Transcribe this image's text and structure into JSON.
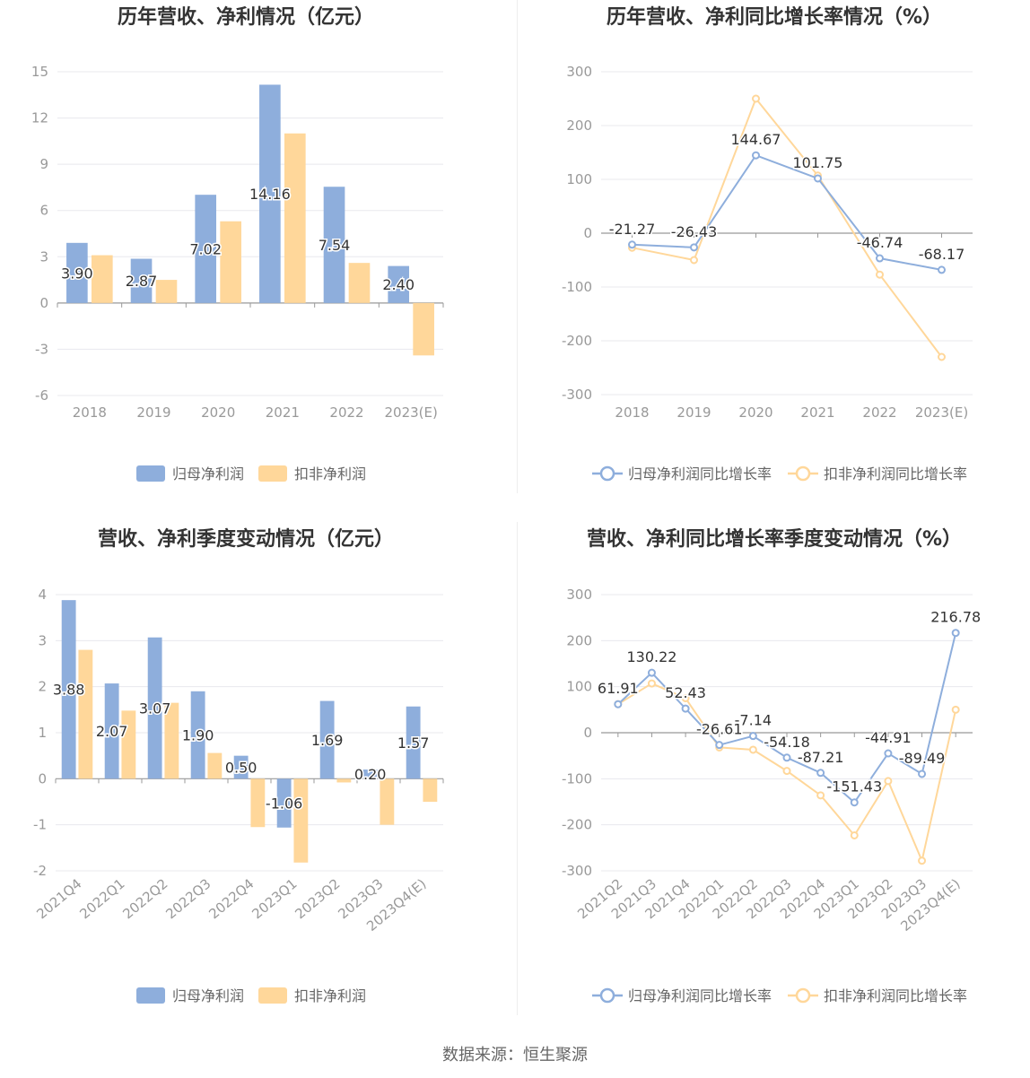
{
  "footer": {
    "source": "数据来源：恒生聚源"
  },
  "colors": {
    "blue": "#8eaedc",
    "orange": "#ffd79a",
    "axis": "#999999",
    "grid": "#e8e8ee",
    "text": "#999999",
    "label": "#333333"
  },
  "chart_data": [
    {
      "type": "bar",
      "title": "历年营收、净利情况（亿元）",
      "categories": [
        "2018",
        "2019",
        "2020",
        "2021",
        "2022",
        "2023(E)"
      ],
      "yticks": [
        "15",
        "12",
        "9",
        "6",
        "3",
        "0",
        "-3",
        "-6"
      ],
      "ylim": [
        -6,
        15
      ],
      "series": [
        {
          "name": "归母净利润",
          "values": [
            3.9,
            2.87,
            7.02,
            14.16,
            7.54,
            2.4
          ],
          "labels": [
            "3.90",
            "2.87",
            "7.02",
            "14.16",
            "7.54",
            "2.40"
          ]
        },
        {
          "name": "扣非净利润",
          "values": [
            3.1,
            1.5,
            5.3,
            11.0,
            2.6,
            -3.4
          ]
        }
      ],
      "legend": "bottom-center",
      "grid": true
    },
    {
      "type": "line",
      "title": "历年营收、净利同比增长率情况（%）",
      "categories": [
        "2018",
        "2019",
        "2020",
        "2021",
        "2022",
        "2023(E)"
      ],
      "yticks": [
        "300",
        "200",
        "100",
        "0",
        "-100",
        "-200",
        "-300"
      ],
      "ylim": [
        -300,
        300
      ],
      "series": [
        {
          "name": "归母净利润同比增长率",
          "values": [
            -21.27,
            -26.43,
            144.67,
            101.75,
            -46.74,
            -68.17
          ],
          "labels": [
            "-21.27",
            "-26.43",
            "144.67",
            "101.75",
            "-46.74",
            "-68.17"
          ]
        },
        {
          "name": "扣非净利润同比增长率",
          "values": [
            -27,
            -50,
            250,
            107,
            -77,
            -230
          ]
        }
      ],
      "legend": "bottom-center",
      "grid": true
    },
    {
      "type": "bar",
      "title": "营收、净利季度变动情况（亿元）",
      "categories": [
        "2021Q4",
        "2022Q1",
        "2022Q2",
        "2022Q3",
        "2022Q4",
        "2023Q1",
        "2023Q2",
        "2023Q3",
        "2023Q4(E)"
      ],
      "yticks": [
        "4",
        "3",
        "2",
        "1",
        "0",
        "-1",
        "-2"
      ],
      "ylim": [
        -2,
        4
      ],
      "series": [
        {
          "name": "归母净利润",
          "values": [
            3.88,
            2.07,
            3.07,
            1.9,
            0.5,
            -1.06,
            1.69,
            0.2,
            1.57
          ],
          "labels": [
            "3.88",
            "2.07",
            "3.07",
            "1.90",
            "0.50",
            "-1.06",
            "1.69",
            "0.20",
            "1.57"
          ]
        },
        {
          "name": "扣非净利润",
          "values": [
            2.8,
            1.48,
            1.65,
            0.56,
            -1.05,
            -1.82,
            -0.08,
            -1.0,
            -0.5
          ]
        }
      ],
      "legend": "bottom-center",
      "grid": true
    },
    {
      "type": "line",
      "title": "营收、净利同比增长率季度变动情况（%）",
      "categories": [
        "2021Q2",
        "2021Q3",
        "2021Q4",
        "2022Q1",
        "2022Q2",
        "2022Q3",
        "2022Q4",
        "2023Q1",
        "2023Q2",
        "2023Q3",
        "2023Q4(E)"
      ],
      "yticks": [
        "300",
        "200",
        "100",
        "0",
        "-100",
        "-200",
        "-300"
      ],
      "ylim": [
        -300,
        300
      ],
      "series": [
        {
          "name": "归母净利润同比增长率",
          "values": [
            61.91,
            130.22,
            52.43,
            -26.61,
            -7.14,
            -54.18,
            -87.21,
            -151.43,
            -44.91,
            -89.49,
            216.78
          ],
          "labels": [
            "61.91",
            "130.22",
            "52.43",
            "-26.61",
            "-7.14",
            "-54.18",
            "-87.21",
            "-151.43",
            "-44.91",
            "-89.49",
            "216.78"
          ]
        },
        {
          "name": "扣非净利润同比增长率",
          "values": [
            62,
            107,
            75,
            -32,
            -37,
            -83,
            -136,
            -223,
            -105,
            -278,
            50
          ]
        }
      ],
      "legend": "bottom-center",
      "grid": true
    }
  ]
}
